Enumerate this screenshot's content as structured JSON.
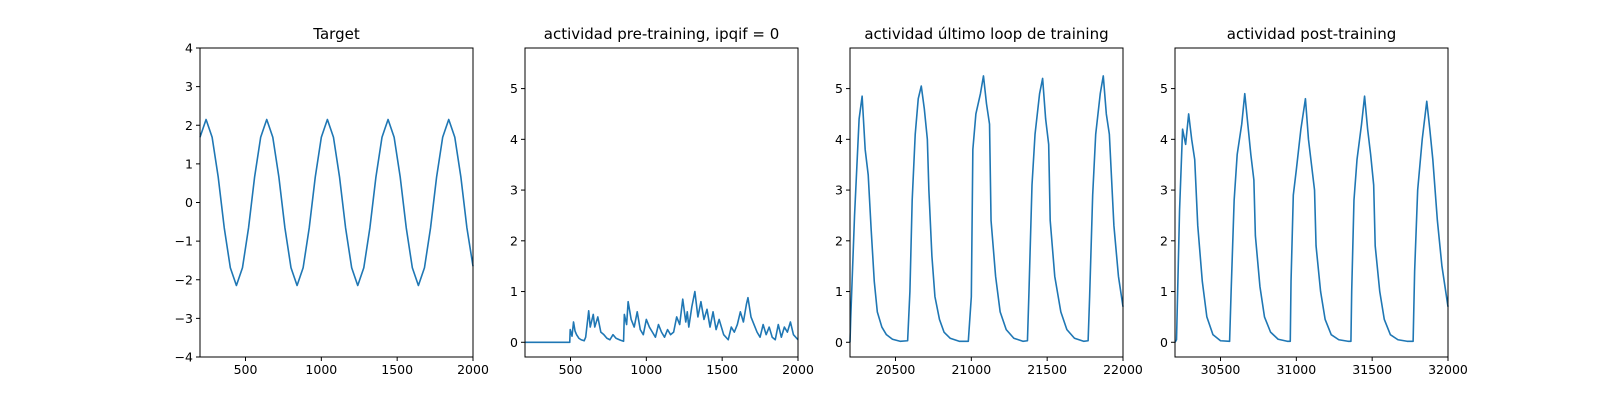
{
  "chart_data": [
    {
      "type": "line",
      "title": "Target",
      "xlim": [
        200,
        2000
      ],
      "ylim": [
        -4,
        4
      ],
      "xticks": [
        500,
        1000,
        1500,
        2000
      ],
      "yticks": [
        -4,
        -3,
        -2,
        -1,
        0,
        1,
        2,
        3,
        4
      ],
      "grid": false,
      "series": [
        {
          "color": "#1f77b4",
          "x": [
            200,
            240,
            280,
            320,
            360,
            400,
            440,
            480,
            520,
            560,
            600,
            640,
            680,
            720,
            760,
            800,
            840,
            880,
            920,
            960,
            1000,
            1040,
            1080,
            1120,
            1160,
            1200,
            1240,
            1280,
            1320,
            1360,
            1400,
            1440,
            1480,
            1520,
            1560,
            1600,
            1640,
            1680,
            1720,
            1760,
            1800,
            1840,
            1880,
            1920,
            1960,
            2000
          ],
          "y": [
            1.69,
            2.15,
            1.69,
            0.66,
            -0.66,
            -1.69,
            -2.15,
            -1.69,
            -0.66,
            0.66,
            1.69,
            2.15,
            1.69,
            0.66,
            -0.66,
            -1.69,
            -2.15,
            -1.69,
            -0.66,
            0.66,
            1.69,
            2.15,
            1.69,
            0.66,
            -0.66,
            -1.69,
            -2.15,
            -1.69,
            -0.66,
            0.66,
            1.69,
            2.15,
            1.69,
            0.66,
            -0.66,
            -1.69,
            -2.15,
            -1.69,
            -0.66,
            0.66,
            1.69,
            2.15,
            1.69,
            0.66,
            -0.66,
            -1.65
          ]
        }
      ]
    },
    {
      "type": "line",
      "title": "actividad pre-training, ipqif = 0",
      "xlim": [
        200,
        2000
      ],
      "ylim": [
        -0.29,
        5.8
      ],
      "xticks": [
        500,
        1000,
        1500,
        2000
      ],
      "yticks": [
        0,
        1,
        2,
        3,
        4,
        5
      ],
      "grid": false,
      "series": [
        {
          "color": "#1f77b4",
          "x": [
            200,
            495,
            498,
            510,
            520,
            530,
            540,
            555,
            570,
            590,
            600,
            620,
            630,
            650,
            660,
            680,
            700,
            720,
            740,
            760,
            780,
            800,
            830,
            850,
            855,
            870,
            880,
            900,
            920,
            940,
            960,
            980,
            1000,
            1020,
            1040,
            1060,
            1080,
            1100,
            1120,
            1140,
            1160,
            1180,
            1200,
            1220,
            1240,
            1260,
            1270,
            1280,
            1300,
            1320,
            1340,
            1360,
            1380,
            1400,
            1420,
            1440,
            1460,
            1480,
            1510,
            1540,
            1560,
            1580,
            1600,
            1620,
            1640,
            1660,
            1670,
            1690,
            1710,
            1730,
            1750,
            1770,
            1790,
            1810,
            1830,
            1850,
            1870,
            1890,
            1910,
            1930,
            1950,
            1970,
            2000
          ],
          "y": [
            0,
            0,
            0.25,
            0.12,
            0.4,
            0.22,
            0.15,
            0.08,
            0.05,
            0.03,
            0.1,
            0.62,
            0.3,
            0.55,
            0.3,
            0.5,
            0.2,
            0.15,
            0.08,
            0.05,
            0.15,
            0.08,
            0.04,
            0.02,
            0.55,
            0.35,
            0.8,
            0.45,
            0.3,
            0.6,
            0.25,
            0.15,
            0.45,
            0.3,
            0.2,
            0.1,
            0.35,
            0.2,
            0.1,
            0.25,
            0.15,
            0.2,
            0.5,
            0.35,
            0.85,
            0.4,
            0.6,
            0.3,
            0.7,
            1.0,
            0.5,
            0.8,
            0.45,
            0.65,
            0.3,
            0.6,
            0.25,
            0.45,
            0.15,
            0.05,
            0.3,
            0.2,
            0.35,
            0.6,
            0.4,
            0.75,
            0.88,
            0.5,
            0.35,
            0.2,
            0.1,
            0.35,
            0.15,
            0.3,
            0.1,
            0.05,
            0.35,
            0.1,
            0.3,
            0.2,
            0.4,
            0.15,
            0.05
          ]
        }
      ]
    },
    {
      "type": "line",
      "title": "actividad último loop de training",
      "xlim": [
        20200,
        22000
      ],
      "ylim": [
        -0.29,
        5.8
      ],
      "xticks": [
        20500,
        21000,
        21500,
        22000
      ],
      "yticks": [
        0,
        1,
        2,
        3,
        4,
        5
      ],
      "grid": false,
      "series": [
        {
          "color": "#1f77b4",
          "x": [
            20200,
            20205,
            20230,
            20260,
            20280,
            20300,
            20320,
            20340,
            20360,
            20380,
            20410,
            20440,
            20480,
            20530,
            20580,
            20595,
            20610,
            20630,
            20650,
            20670,
            20690,
            20710,
            20720,
            20740,
            20760,
            20790,
            20820,
            20860,
            20920,
            20980,
            21000,
            21010,
            21030,
            21060,
            21080,
            21100,
            21120,
            21130,
            21160,
            21190,
            21230,
            21280,
            21340,
            21370,
            21380,
            21400,
            21420,
            21450,
            21470,
            21490,
            21510,
            21520,
            21550,
            21590,
            21630,
            21680,
            21740,
            21770,
            21780,
            21800,
            21820,
            21850,
            21870,
            21890,
            21910,
            21940,
            21970,
            22000
          ],
          "y": [
            0.0,
            0.5,
            2.5,
            4.4,
            4.85,
            3.8,
            3.3,
            2.2,
            1.2,
            0.6,
            0.3,
            0.15,
            0.06,
            0.02,
            0.03,
            1.0,
            2.8,
            4.1,
            4.8,
            5.05,
            4.6,
            4.0,
            3.0,
            1.7,
            0.9,
            0.45,
            0.2,
            0.08,
            0.02,
            0.02,
            0.9,
            3.8,
            4.5,
            4.9,
            5.25,
            4.7,
            4.3,
            2.4,
            1.3,
            0.6,
            0.25,
            0.08,
            0.02,
            0.03,
            1.0,
            3.1,
            4.1,
            4.9,
            5.2,
            4.4,
            3.9,
            2.4,
            1.3,
            0.6,
            0.25,
            0.08,
            0.02,
            0.03,
            0.9,
            2.9,
            4.1,
            4.9,
            5.25,
            4.5,
            4.1,
            2.3,
            1.3,
            0.7
          ]
        }
      ]
    },
    {
      "type": "line",
      "title": "actividad post-training",
      "xlim": [
        30200,
        32000
      ],
      "ylim": [
        -0.29,
        5.8
      ],
      "xticks": [
        30500,
        31000,
        31500,
        32000
      ],
      "yticks": [
        0,
        1,
        2,
        3,
        4,
        5
      ],
      "grid": false,
      "series": [
        {
          "color": "#1f77b4",
          "x": [
            30200,
            30210,
            30230,
            30250,
            30270,
            30290,
            30310,
            30330,
            30350,
            30380,
            30410,
            30450,
            30500,
            30560,
            30570,
            30590,
            30610,
            30640,
            30660,
            30680,
            30700,
            30720,
            30730,
            30760,
            30790,
            30830,
            30880,
            30940,
            30960,
            30965,
            30980,
            31000,
            31030,
            31060,
            31080,
            31100,
            31120,
            31130,
            31160,
            31190,
            31230,
            31280,
            31340,
            31360,
            31365,
            31380,
            31400,
            31430,
            31450,
            31470,
            31490,
            31510,
            31520,
            31550,
            31580,
            31620,
            31670,
            31730,
            31770,
            31780,
            31800,
            31830,
            31860,
            31880,
            31900,
            31930,
            31960,
            32000
          ],
          "y": [
            0.0,
            0.05,
            2.6,
            4.2,
            3.9,
            4.5,
            4.0,
            3.6,
            2.3,
            1.2,
            0.5,
            0.15,
            0.03,
            0.02,
            1.0,
            2.8,
            3.7,
            4.3,
            4.9,
            4.3,
            3.7,
            3.2,
            2.1,
            1.1,
            0.5,
            0.2,
            0.06,
            0.02,
            0.02,
            1.2,
            2.9,
            3.4,
            4.2,
            4.8,
            4.0,
            3.5,
            3.0,
            1.9,
            1.0,
            0.45,
            0.15,
            0.05,
            0.02,
            0.02,
            1.0,
            2.8,
            3.6,
            4.3,
            4.85,
            4.2,
            3.7,
            3.1,
            1.9,
            1.0,
            0.45,
            0.15,
            0.05,
            0.02,
            0.02,
            1.4,
            3.0,
            4.0,
            4.75,
            4.2,
            3.6,
            2.4,
            1.5,
            0.7
          ]
        }
      ]
    }
  ]
}
